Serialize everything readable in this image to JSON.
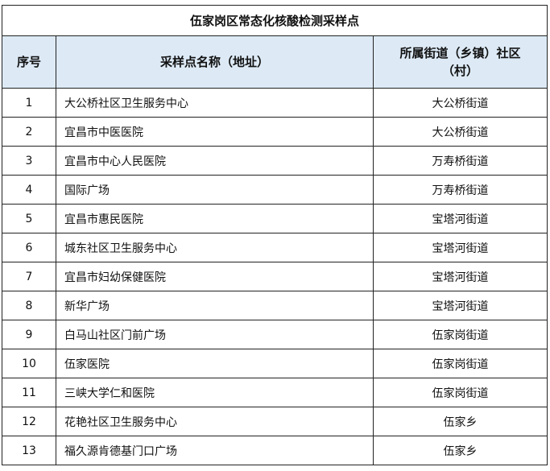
{
  "title": "伍家岗区常态化核酸检测采样点",
  "headers": {
    "index": "序号",
    "site": "采样点名称（地址）",
    "street": "所属街道（乡镇）社区（村）"
  },
  "colors": {
    "header_bg": "#ddeaf6",
    "border": "#222222"
  },
  "rows": [
    {
      "index": "1",
      "site": "大公桥社区卫生服务中心",
      "street": "大公桥街道"
    },
    {
      "index": "2",
      "site": "宜昌市中医医院",
      "street": "大公桥街道"
    },
    {
      "index": "3",
      "site": "宜昌市中心人民医院",
      "street": "万寿桥街道"
    },
    {
      "index": "4",
      "site": "国际广场",
      "street": "万寿桥街道"
    },
    {
      "index": "5",
      "site": "宜昌市惠民医院",
      "street": "宝塔河街道"
    },
    {
      "index": "6",
      "site": "城东社区卫生服务中心",
      "street": "宝塔河街道"
    },
    {
      "index": "7",
      "site": "宜昌市妇幼保健医院",
      "street": "宝塔河街道"
    },
    {
      "index": "8",
      "site": "新华广场",
      "street": "宝塔河街道"
    },
    {
      "index": "9",
      "site": "白马山社区门前广场",
      "street": "伍家岗街道"
    },
    {
      "index": "10",
      "site": "伍家医院",
      "street": "伍家岗街道"
    },
    {
      "index": "11",
      "site": "三峡大学仁和医院",
      "street": "伍家岗街道"
    },
    {
      "index": "12",
      "site": "花艳社区卫生服务中心",
      "street": "伍家乡"
    },
    {
      "index": "13",
      "site": "福久源肯德基门口广场",
      "street": "伍家乡"
    }
  ]
}
